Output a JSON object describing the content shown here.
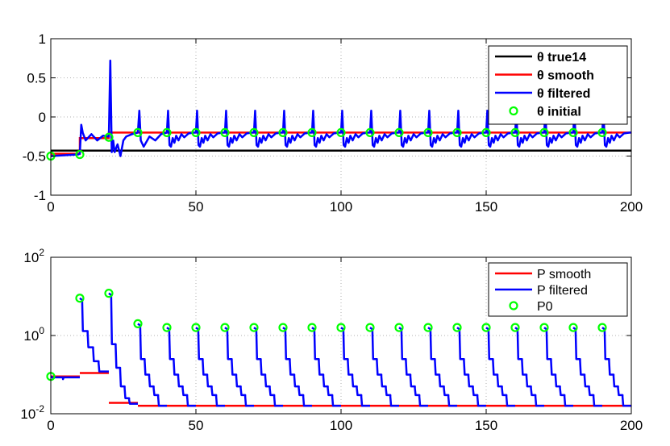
{
  "chart_data": [
    {
      "type": "line",
      "xlim": [
        0,
        200
      ],
      "ylim": [
        -1,
        1
      ],
      "x_ticks": [
        "0",
        "50",
        "100",
        "150",
        "200"
      ],
      "y_ticks": [
        "-1",
        "-0.5",
        "0",
        "0.5",
        "1"
      ],
      "grid": true,
      "legend_position": "top-right",
      "legend": [
        "θ true14",
        "θ smooth",
        "θ filtered",
        "θ initial"
      ],
      "series": [
        {
          "name": "θ true14",
          "color": "#000000",
          "x": [
            0,
            200
          ],
          "y": [
            -0.43,
            -0.43
          ]
        },
        {
          "name": "θ smooth",
          "color": "#ff0000",
          "x": [
            0,
            10,
            10,
            20,
            20,
            200
          ],
          "y": [
            -0.47,
            -0.47,
            -0.27,
            -0.27,
            -0.2,
            -0.2
          ]
        },
        {
          "name": "θ filtered",
          "color": "#0000ff",
          "description_points": {
            "x": [
              0,
              9.5,
              10,
              10.5,
              11,
              12,
              14,
              16,
              18,
              20,
              20.5,
              21,
              21.5,
              22,
              23,
              24,
              25,
              26,
              28,
              30,
              30.5,
              31,
              32,
              34,
              36,
              38,
              40
            ],
            "y": [
              -0.5,
              -0.48,
              -0.47,
              -0.1,
              -0.2,
              -0.3,
              -0.22,
              -0.3,
              -0.24,
              -0.25,
              0.72,
              -0.45,
              -0.3,
              -0.45,
              -0.35,
              -0.5,
              -0.3,
              -0.25,
              -0.22,
              -0.2,
              0.08,
              -0.3,
              -0.38,
              -0.25,
              -0.3,
              -0.22,
              -0.2
            ]
          },
          "cycle": {
            "start": 30,
            "period": 10,
            "peak": 0.08,
            "trough": -0.38,
            "settle": -0.2
          }
        },
        {
          "name": "θ initial",
          "color": "#00ff00",
          "marker": "o",
          "x": [
            0,
            10,
            20,
            30,
            40,
            50,
            60,
            70,
            80,
            90,
            100,
            110,
            120,
            130,
            140,
            150,
            160,
            170,
            180,
            190
          ],
          "y": [
            -0.5,
            -0.48,
            -0.26,
            -0.2,
            -0.2,
            -0.2,
            -0.2,
            -0.2,
            -0.2,
            -0.2,
            -0.2,
            -0.2,
            -0.2,
            -0.2,
            -0.2,
            -0.2,
            -0.2,
            -0.2,
            -0.2,
            -0.2
          ]
        }
      ]
    },
    {
      "type": "line",
      "yscale": "log",
      "xlim": [
        0,
        200
      ],
      "ylim": [
        0.01,
        100
      ],
      "x_ticks": [
        "0",
        "50",
        "100",
        "150",
        "200"
      ],
      "y_ticks": [
        {
          "base": "10",
          "exp": "-2"
        },
        {
          "base": "10",
          "exp": "0"
        },
        {
          "base": "10",
          "exp": "2"
        }
      ],
      "grid": true,
      "legend_position": "top-right",
      "legend": [
        "P smooth",
        "P filtered",
        "P0"
      ],
      "series": [
        {
          "name": "P smooth",
          "color": "#ff0000",
          "segments": [
            {
              "x": [
                0,
                10
              ],
              "y": [
                0.09,
                0.09
              ]
            },
            {
              "x": [
                10,
                20
              ],
              "y": [
                0.11,
                0.11
              ]
            },
            {
              "x": [
                20,
                30
              ],
              "y": [
                0.019,
                0.019
              ]
            },
            {
              "x": [
                30,
                200
              ],
              "y": [
                0.016,
                0.016
              ]
            }
          ]
        },
        {
          "name": "P filtered",
          "color": "#0000ff",
          "cycles": [
            {
              "start": 0,
              "p0": 0.09,
              "steps": [
                0.085,
                0.085
              ]
            },
            {
              "start": 10,
              "p0": 9,
              "steps": [
                1.3,
                0.5,
                0.22,
                0.12
              ]
            },
            {
              "start": 20,
              "p0": 12,
              "steps": [
                0.6,
                0.15,
                0.05,
                0.025,
                0.018
              ]
            },
            {
              "start": 30,
              "p0": 2.0,
              "steps": [
                0.25,
                0.1,
                0.05,
                0.03,
                0.016
              ]
            },
            {
              "start": 40,
              "p0": 1.6,
              "steps": [
                0.25,
                0.1,
                0.05,
                0.03,
                0.016
              ]
            },
            {
              "start": 50,
              "p0": 1.6,
              "steps": [
                0.25,
                0.1,
                0.05,
                0.03,
                0.016
              ]
            },
            {
              "start": 60,
              "p0": 1.6,
              "steps": [
                0.25,
                0.1,
                0.05,
                0.03,
                0.016
              ]
            },
            {
              "start": 70,
              "p0": 1.6,
              "steps": [
                0.25,
                0.1,
                0.05,
                0.03,
                0.016
              ]
            },
            {
              "start": 80,
              "p0": 1.6,
              "steps": [
                0.25,
                0.1,
                0.05,
                0.03,
                0.016
              ]
            },
            {
              "start": 90,
              "p0": 1.6,
              "steps": [
                0.25,
                0.1,
                0.05,
                0.03,
                0.016
              ]
            },
            {
              "start": 100,
              "p0": 1.6,
              "steps": [
                0.25,
                0.1,
                0.05,
                0.03,
                0.016
              ]
            },
            {
              "start": 110,
              "p0": 1.6,
              "steps": [
                0.25,
                0.1,
                0.05,
                0.03,
                0.016
              ]
            },
            {
              "start": 120,
              "p0": 1.6,
              "steps": [
                0.25,
                0.1,
                0.05,
                0.03,
                0.016
              ]
            },
            {
              "start": 130,
              "p0": 1.6,
              "steps": [
                0.25,
                0.1,
                0.05,
                0.03,
                0.016
              ]
            },
            {
              "start": 140,
              "p0": 1.6,
              "steps": [
                0.25,
                0.1,
                0.05,
                0.03,
                0.016
              ]
            },
            {
              "start": 150,
              "p0": 1.6,
              "steps": [
                0.25,
                0.1,
                0.05,
                0.03,
                0.016
              ]
            },
            {
              "start": 160,
              "p0": 1.6,
              "steps": [
                0.25,
                0.1,
                0.05,
                0.03,
                0.016
              ]
            },
            {
              "start": 170,
              "p0": 1.6,
              "steps": [
                0.25,
                0.1,
                0.05,
                0.03,
                0.016
              ]
            },
            {
              "start": 180,
              "p0": 1.6,
              "steps": [
                0.25,
                0.1,
                0.05,
                0.03,
                0.016
              ]
            },
            {
              "start": 190,
              "p0": 1.6,
              "steps": [
                0.25,
                0.1,
                0.05,
                0.03,
                0.016
              ]
            }
          ]
        },
        {
          "name": "P0",
          "color": "#00ff00",
          "marker": "o",
          "x": [
            0,
            10,
            20,
            30,
            40,
            50,
            60,
            70,
            80,
            90,
            100,
            110,
            120,
            130,
            140,
            150,
            160,
            170,
            180,
            190
          ],
          "y": [
            0.09,
            9,
            12,
            2.0,
            1.6,
            1.6,
            1.6,
            1.6,
            1.6,
            1.6,
            1.6,
            1.6,
            1.6,
            1.6,
            1.6,
            1.6,
            1.6,
            1.6,
            1.6,
            1.6
          ]
        }
      ]
    }
  ]
}
